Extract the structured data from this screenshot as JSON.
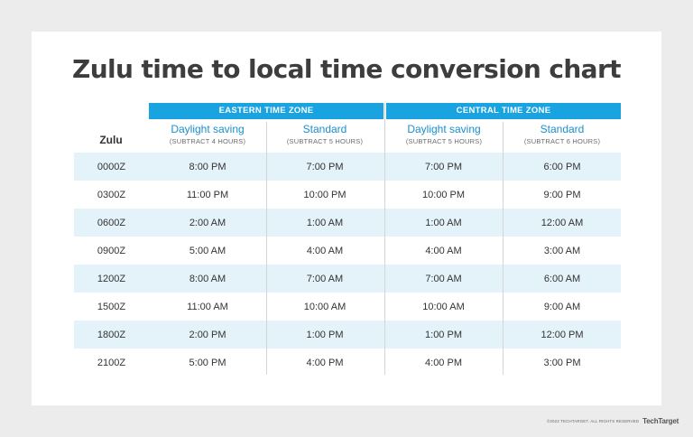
{
  "title": "Zulu time to local time conversion chart",
  "zones": {
    "eastern": "EASTERN TIME ZONE",
    "central": "CENTRAL TIME ZONE"
  },
  "columns": {
    "zulu": "Zulu",
    "eastern_daylight": {
      "label": "Daylight saving",
      "sub": "(SUBTRACT 4 HOURS)"
    },
    "eastern_standard": {
      "label": "Standard",
      "sub": "(SUBTRACT 5 HOURS)"
    },
    "central_daylight": {
      "label": "Daylight saving",
      "sub": "(SUBTRACT 5 HOURS)"
    },
    "central_standard": {
      "label": "Standard",
      "sub": "(SUBTRACT 6 HOURS)"
    }
  },
  "rows": [
    [
      "0000Z",
      "8:00 PM",
      "7:00 PM",
      "7:00 PM",
      "6:00 PM"
    ],
    [
      "0300Z",
      "11:00 PM",
      "10:00 PM",
      "10:00 PM",
      "9:00 PM"
    ],
    [
      "0600Z",
      "2:00 AM",
      "1:00 AM",
      "1:00 AM",
      "12:00 AM"
    ],
    [
      "0900Z",
      "5:00 AM",
      "4:00 AM",
      "4:00 AM",
      "3:00 AM"
    ],
    [
      "1200Z",
      "8:00 AM",
      "7:00 AM",
      "7:00 AM",
      "6:00 AM"
    ],
    [
      "1500Z",
      "11:00 AM",
      "10:00 AM",
      "10:00 AM",
      "9:00 AM"
    ],
    [
      "1800Z",
      "2:00 PM",
      "1:00 PM",
      "1:00 PM",
      "12:00 PM"
    ],
    [
      "2100Z",
      "5:00 PM",
      "4:00 PM",
      "4:00 PM",
      "3:00 PM"
    ]
  ],
  "footer": {
    "copyright": "©2022 TECHTARGET. ALL RIGHTS RESERVED",
    "logo": "TechTarget"
  },
  "colors": {
    "accent": "#1aa3e1",
    "row_shade": "#e4f2fa",
    "header_text": "#1a8fcf"
  }
}
